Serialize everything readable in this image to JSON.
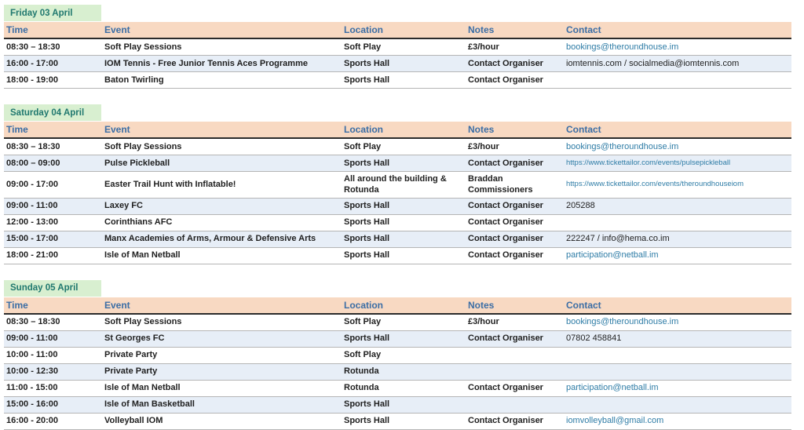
{
  "colors": {
    "day_header_bg": "#d8efd0",
    "day_header_text": "#20786f",
    "column_header_bg": "#f8d9c2",
    "column_header_text": "#3c6ea5",
    "row_alt_bg": "#e7eef7",
    "body_text": "#1f1f1f",
    "link": "#2e7ca6"
  },
  "columns": [
    "Time",
    "Event",
    "Location",
    "Notes",
    "Contact"
  ],
  "sections": [
    {
      "day_label": "Friday 03 April",
      "rows": [
        {
          "time": "08:30 – 18:30",
          "event": "Soft Play Sessions",
          "location": "Soft Play",
          "notes": "£3/hour",
          "contact": "bookings@theroundhouse.im",
          "contact_style": "link"
        },
        {
          "time": "16:00 - 17:00",
          "event": "IOM Tennis - Free Junior Tennis Aces Programme",
          "location": "Sports Hall",
          "notes": "Contact Organiser",
          "contact": "iomtennis.com / socialmedia@iomtennis.com",
          "contact_style": "plain"
        },
        {
          "time": "18:00 - 19:00",
          "event": "Baton Twirling",
          "location": "Sports Hall",
          "notes": "Contact Organiser",
          "contact": "",
          "contact_style": "none"
        }
      ]
    },
    {
      "day_label": "Saturday 04 April",
      "rows": [
        {
          "time": "08:30 – 18:30",
          "event": "Soft Play Sessions",
          "location": "Soft Play",
          "notes": "£3/hour",
          "contact": "bookings@theroundhouse.im",
          "contact_style": "link"
        },
        {
          "time": "08:00 – 09:00",
          "event": "Pulse Pickleball",
          "location": "Sports Hall",
          "notes": "Contact Organiser",
          "contact": "https://www.tickettailor.com/events/pulsepickleball",
          "contact_style": "link-small"
        },
        {
          "time": "09:00 - 17:00",
          "event": "Easter Trail Hunt with Inflatable!",
          "location": "All around the building & Rotunda",
          "notes": "Braddan Commissioners",
          "contact": "https://www.tickettailor.com/events/theroundhouseiom",
          "contact_style": "link-small"
        },
        {
          "time": "09:00 - 11:00",
          "event": "Laxey FC",
          "location": "Sports Hall",
          "notes": "Contact Organiser",
          "contact": "205288",
          "contact_style": "plain"
        },
        {
          "time": "12:00 - 13:00",
          "event": "Corinthians AFC",
          "location": "Sports Hall",
          "notes": "Contact Organiser",
          "contact": "",
          "contact_style": "none"
        },
        {
          "time": "15:00 - 17:00",
          "event": "Manx Academies of Arms, Armour & Defensive Arts",
          "location": "Sports Hall",
          "notes": "Contact Organiser",
          "contact": "222247 / info@hema.co.im",
          "contact_style": "plain"
        },
        {
          "time": "18:00 - 21:00",
          "event": "Isle of Man Netball",
          "location": "Sports Hall",
          "notes": "Contact Organiser",
          "contact": "participation@netball.im",
          "contact_style": "link"
        }
      ]
    },
    {
      "day_label": "Sunday 05 April",
      "rows": [
        {
          "time": "08:30 – 18:30",
          "event": "Soft Play Sessions",
          "location": "Soft Play",
          "notes": "£3/hour",
          "contact": "bookings@theroundhouse.im",
          "contact_style": "link"
        },
        {
          "time": "09:00 - 11:00",
          "event": "St Georges FC",
          "location": "Sports Hall",
          "notes": "Contact Organiser",
          "contact": "07802 458841",
          "contact_style": "plain"
        },
        {
          "time": "10:00 - 11:00",
          "event": "Private Party",
          "location": "Soft Play",
          "notes": "",
          "contact": "",
          "contact_style": "none"
        },
        {
          "time": "10:00 - 12:30",
          "event": "Private Party",
          "location": "Rotunda",
          "notes": "",
          "contact": "",
          "contact_style": "none"
        },
        {
          "time": "11:00 - 15:00",
          "event": "Isle of Man Netball",
          "location": "Rotunda",
          "notes": "Contact Organiser",
          "contact": "participation@netball.im",
          "contact_style": "link"
        },
        {
          "time": "15:00 - 16:00",
          "event": "Isle of Man Basketball",
          "location": "Sports Hall",
          "notes": "",
          "contact": "",
          "contact_style": "none"
        },
        {
          "time": "16:00 - 20:00",
          "event": "Volleyball IOM",
          "location": "Sports Hall",
          "notes": "Contact Organiser",
          "contact": "iomvolleyball@gmail.com",
          "contact_style": "link"
        }
      ]
    }
  ]
}
